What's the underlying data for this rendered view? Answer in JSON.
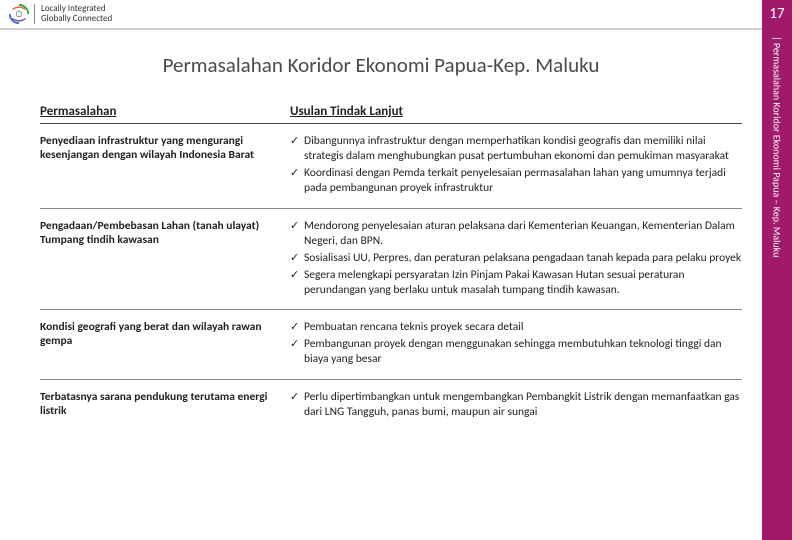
{
  "brand": {
    "line1": "Locally Integrated",
    "line2": "Globally Connected"
  },
  "pageNumber": "17",
  "sideLabel": "| Permasalahan Koridor Ekonomi Papua – Kep. Maluku",
  "sideBandColor": "#a11a6a",
  "title": "Permasalahan Koridor Ekonomi Papua-Kep. Maluku",
  "headers": {
    "left": "Permasalahan",
    "right": "Usulan Tindak Lanjut"
  },
  "rows": [
    {
      "problem": "Penyediaan infrastruktur yang mengurangi kesenjangan dengan wilayah Indonesia Barat",
      "actions": [
        "Dibangunnya infrastruktur dengan memperhatikan kondisi geografis dan memiliki nilai strategis dalam menghubungkan pusat pertumbuhan ekonomi dan pemukiman masyarakat",
        "Koordinasi dengan Pemda terkait penyelesaian permasalahan lahan yang umumnya terjadi pada pembangunan proyek infrastruktur"
      ]
    },
    {
      "problem": "Pengadaan/Pembebasan Lahan (tanah ulayat)\nTumpang tindih kawasan",
      "actions": [
        "Mendorong penyelesaian aturan pelaksana dari Kementerian Keuangan, Kementerian Dalam Negeri, dan BPN.",
        "Sosialisasi UU, Perpres, dan peraturan pelaksana pengadaan tanah kepada para pelaku proyek",
        "Segera melengkapi persyaratan Izin Pinjam Pakai Kawasan Hutan sesuai peraturan perundangan yang berlaku untuk masalah tumpang tindih kawasan."
      ]
    },
    {
      "problem": "Kondisi geografi yang berat dan wilayah rawan gempa",
      "actions": [
        "Pembuatan rencana teknis proyek secara detail",
        "Pembangunan proyek dengan menggunakan sehingga membutuhkan teknologi tinggi dan biaya yang besar"
      ]
    },
    {
      "problem": "Terbatasnya sarana pendukung terutama energi listrik",
      "actions": [
        "Perlu dipertimbangkan untuk mengembangkan Pembangkit Listrik dengan memanfaatkan gas dari LNG Tangguh, panas bumi, maupun air sungai"
      ]
    }
  ]
}
